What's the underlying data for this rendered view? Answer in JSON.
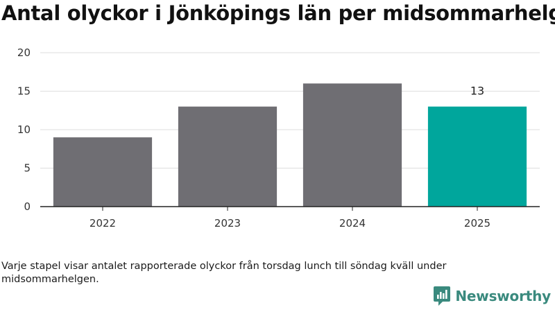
{
  "title": "Antal olyckor i Jönköpings län per midsommarhelg",
  "note": "Varje stapel visar antalet rapporterade olyckor från torsdag lunch till söndag kväll under midsommarhelgen.",
  "brand": {
    "name": "Newsworthy",
    "color": "#3a8a7e"
  },
  "chart_data": {
    "type": "bar",
    "categories": [
      "2022",
      "2023",
      "2024",
      "2025"
    ],
    "values": [
      9,
      13,
      16,
      13
    ],
    "colors": [
      "#6f6e73",
      "#6f6e73",
      "#6f6e73",
      "#00a69c"
    ],
    "ylim": [
      0,
      20
    ],
    "yticks": [
      0,
      5,
      10,
      15,
      20
    ],
    "data_labels": [
      null,
      null,
      null,
      "13"
    ],
    "grid": true,
    "xlabel": "",
    "ylabel": ""
  }
}
